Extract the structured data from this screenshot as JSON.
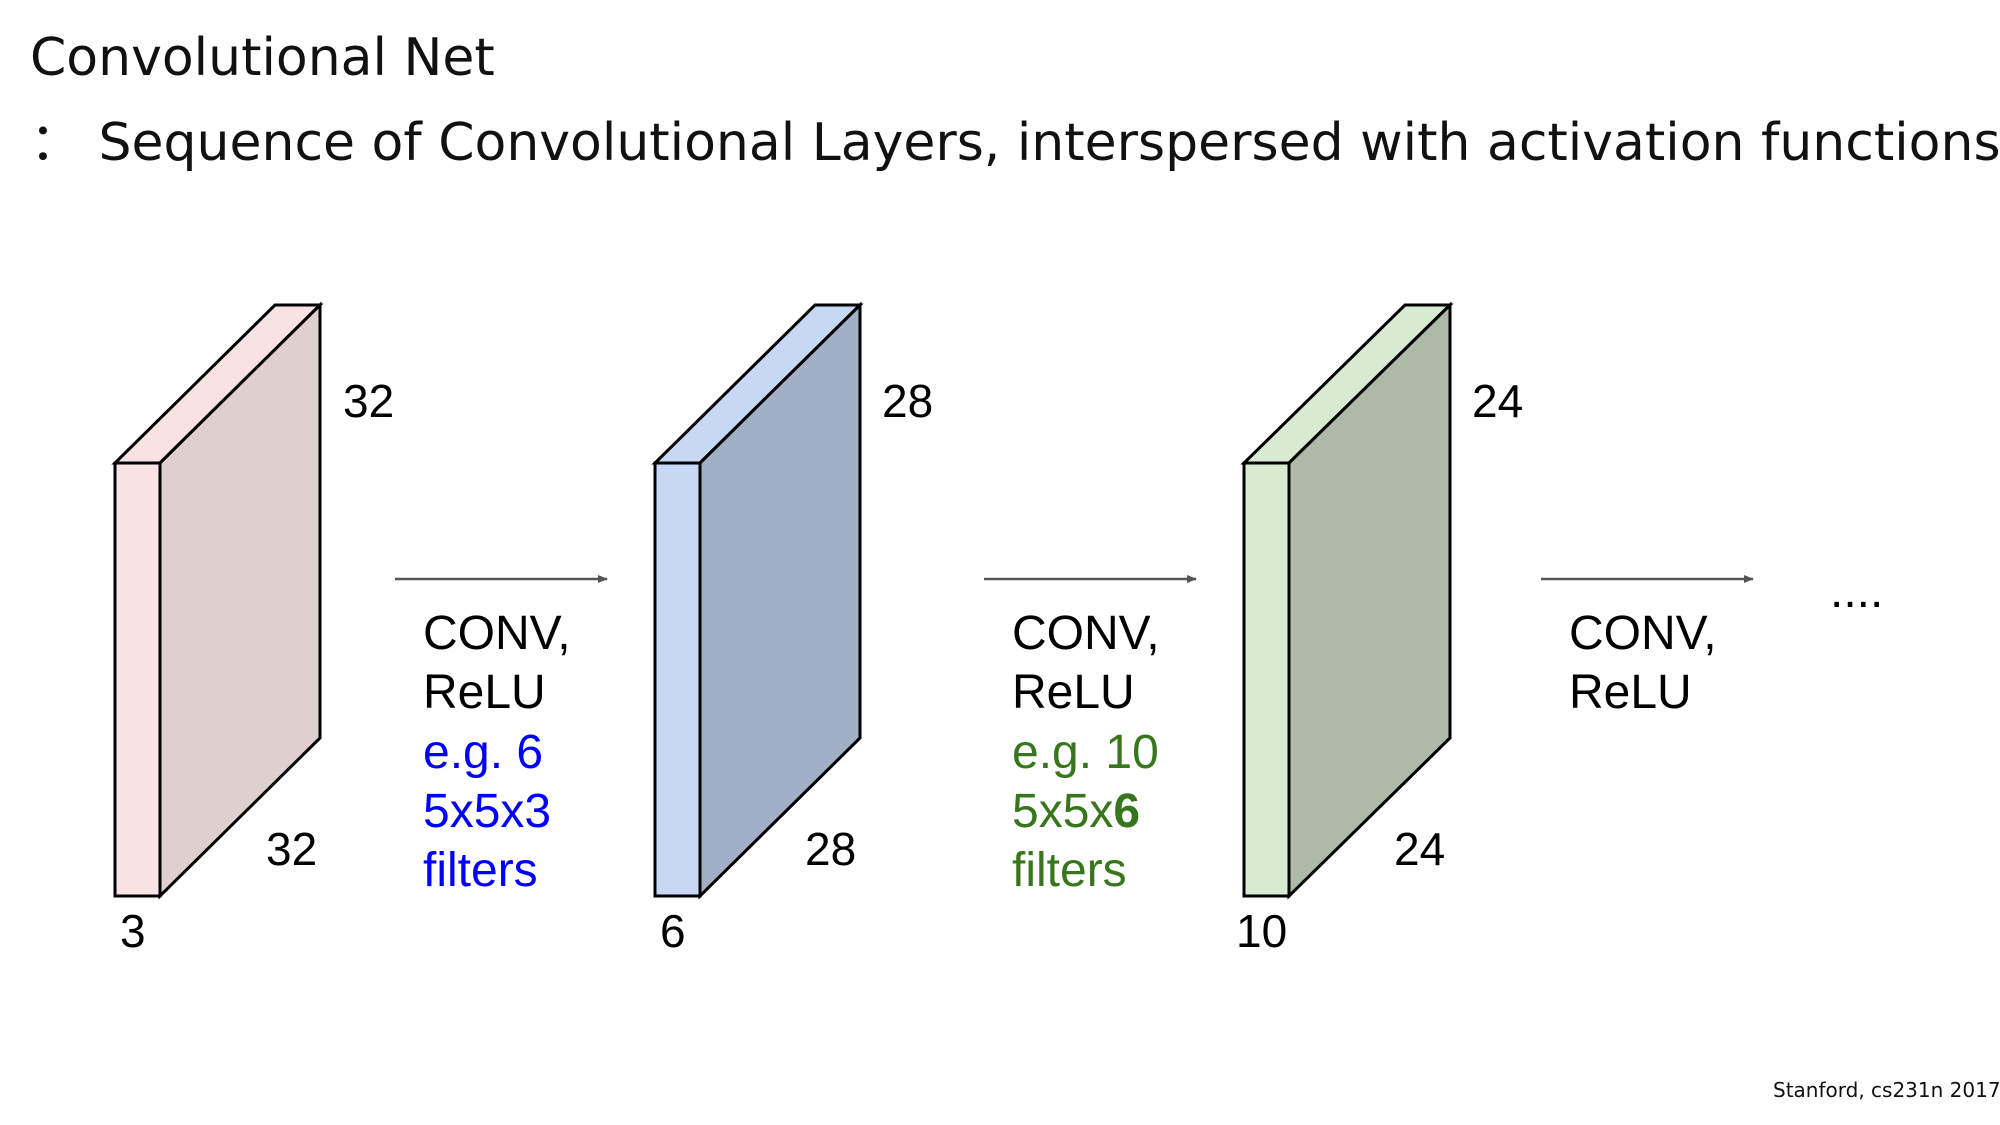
{
  "title": "Convolutional Net",
  "subtitle": "： Sequence of Convolutional Layers, interspersed with activation functions",
  "volumes": [
    {
      "height": "32",
      "width": "32",
      "depth": "3",
      "front_color": "#f8e2e3",
      "side_color": "#e0cfcf"
    },
    {
      "height": "28",
      "width": "28",
      "depth": "6",
      "front_color": "#c7d8f5",
      "side_color": "#a1afc7"
    },
    {
      "height": "24",
      "width": "24",
      "depth": "10",
      "front_color": "#d9ead3",
      "side_color": "#aebaa8"
    }
  ],
  "operations": [
    {
      "line1": "CONV,",
      "line2": "ReLU",
      "example": "e.g. 6",
      "filter_prefix": "5x5x",
      "filter_depth": "3",
      "filters_word": "filters",
      "color": "#0000ff"
    },
    {
      "line1": "CONV,",
      "line2": "ReLU",
      "example": "e.g. 10",
      "filter_prefix": "5x5x",
      "filter_depth": "6",
      "filters_word": "filters",
      "color": "#38761d"
    },
    {
      "line1": "CONV,",
      "line2": "ReLU"
    }
  ],
  "ellipsis": "....",
  "credit": "Stanford, cs231n 2017"
}
